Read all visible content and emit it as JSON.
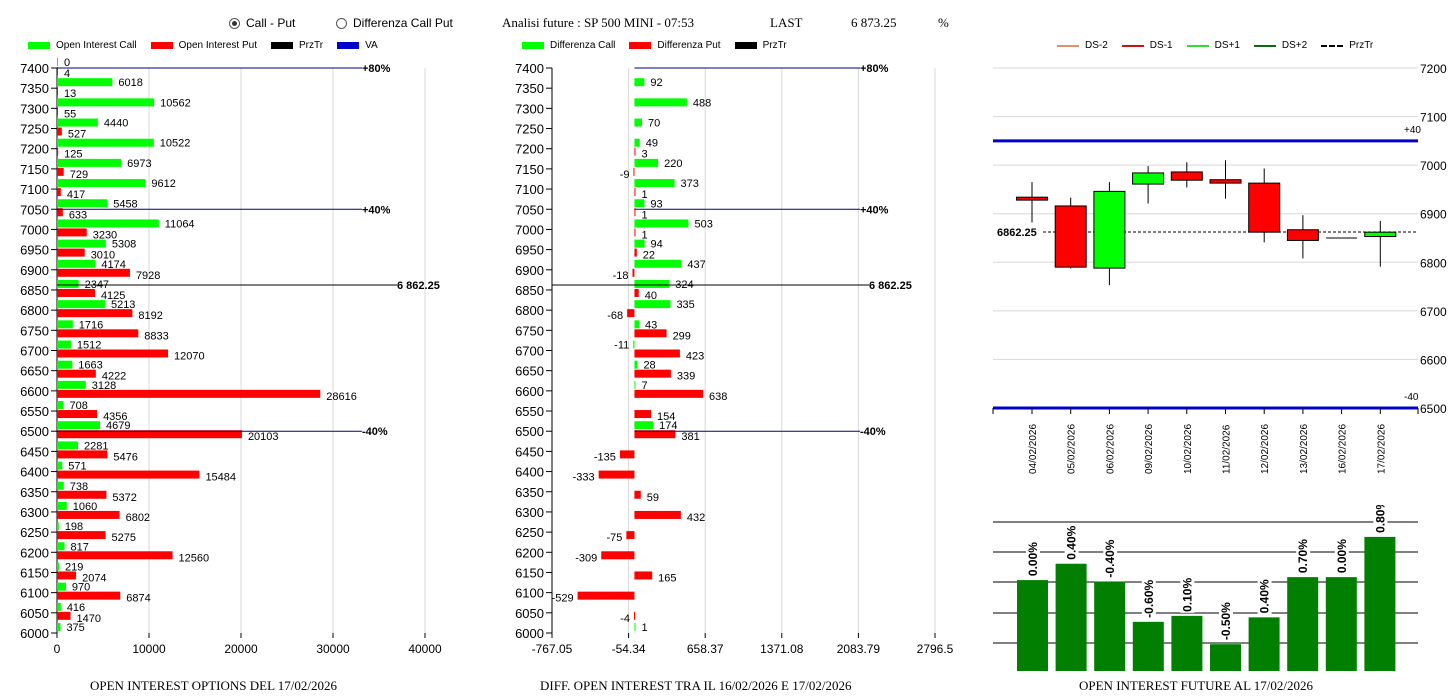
{
  "header": {
    "radio_options": [
      {
        "label": "Call - Put",
        "selected": true
      },
      {
        "label": "Differenza Call Put",
        "selected": false
      }
    ],
    "analysis_title": "Analisi future : SP 500 MINI - 07:53",
    "last_label": "LAST",
    "last_value": "6 873.25",
    "percent_label": "%"
  },
  "colors": {
    "call": "#00ff00",
    "put": "#ff0000",
    "przTr": "#000000",
    "va": "#0000cc",
    "future_bar": "#007f00"
  },
  "chart_data": [
    {
      "type": "bar",
      "orientation": "horizontal",
      "title": "OPEN INTEREST OPTIONS DEL 17/02/2026",
      "legend": [
        "Open Interest Call",
        "Open Interest Put",
        "PrzTr",
        "VA"
      ],
      "legend_placement": "top",
      "xlabel": "",
      "ylabel": "",
      "xlim": [
        0,
        40000
      ],
      "x_ticks": [
        "0",
        "10000",
        "20000",
        "30000",
        "40000"
      ],
      "grid": true,
      "categories": [
        7400,
        7350,
        7300,
        7250,
        7200,
        7150,
        7100,
        7050,
        7000,
        6950,
        6900,
        6850,
        6800,
        6750,
        6700,
        6650,
        6600,
        6550,
        6500,
        6450,
        6400,
        6350,
        6300,
        6250,
        6200,
        6150,
        6100,
        6050,
        6000
      ],
      "series": [
        {
          "name": "Open Interest Call",
          "values": [
            0,
            6018,
            10562,
            4440,
            10522,
            6973,
            9612,
            5458,
            11064,
            5308,
            4174,
            2347,
            5213,
            1716,
            1512,
            1663,
            3128,
            708,
            4679,
            2281,
            571,
            738,
            1060,
            198,
            817,
            219,
            970,
            416,
            375
          ]
        },
        {
          "name": "Open Interest Put",
          "values": [
            4,
            13,
            55,
            527,
            125,
            729,
            417,
            633,
            3230,
            3010,
            7928,
            4125,
            8192,
            8833,
            12070,
            4222,
            28616,
            4356,
            20103,
            5476,
            15484,
            5372,
            6802,
            5275,
            12560,
            2074,
            6874,
            1470,
            null
          ]
        }
      ],
      "reference_lines": [
        {
          "level": 7400,
          "label": "+80%",
          "kind": "VA"
        },
        {
          "level": 7050,
          "label": "+40%",
          "kind": "VA"
        },
        {
          "level": 6862.25,
          "label": "6 862.25",
          "kind": "PrzTr"
        },
        {
          "level": 6500,
          "label": "-40%",
          "kind": "VA"
        }
      ]
    },
    {
      "type": "bar",
      "orientation": "horizontal",
      "title": "DIFF. OPEN INTEREST TRA IL 16/02/2026 E 17/02/2026",
      "legend": [
        "Differenza Call",
        "Differenza Put",
        "PrzTr"
      ],
      "legend_placement": "top",
      "xlim": [
        -767.05,
        2796.5
      ],
      "x_ticks": [
        "-767.05",
        "-54.34",
        "658.37",
        "1371.08",
        "2083.79",
        "2796.5"
      ],
      "grid": true,
      "categories": [
        7400,
        7350,
        7300,
        7250,
        7200,
        7150,
        7100,
        7050,
        7000,
        6950,
        6900,
        6850,
        6800,
        6750,
        6700,
        6650,
        6600,
        6550,
        6500,
        6450,
        6400,
        6350,
        6300,
        6250,
        6200,
        6150,
        6100,
        6050,
        6000
      ],
      "series": [
        {
          "name": "Differenza Call",
          "values": [
            null,
            92,
            488,
            70,
            49,
            220,
            373,
            93,
            503,
            94,
            437,
            324,
            335,
            43,
            -11,
            28,
            7,
            null,
            174,
            null,
            null,
            null,
            null,
            null,
            null,
            null,
            null,
            null,
            1
          ]
        },
        {
          "name": "Differenza Put",
          "values": [
            null,
            null,
            null,
            null,
            3,
            -9,
            1,
            1,
            1,
            22,
            -18,
            40,
            -68,
            299,
            423,
            339,
            638,
            154,
            381,
            -135,
            -333,
            59,
            432,
            -75,
            -309,
            165,
            -529,
            -4,
            null
          ]
        }
      ],
      "reference_lines": [
        {
          "level": 7400,
          "label": "+80%",
          "kind": "VA"
        },
        {
          "level": 7050,
          "label": "+40%",
          "kind": "VA"
        },
        {
          "level": 6862.25,
          "label": "6 862.25",
          "kind": "PrzTr"
        },
        {
          "level": 6500,
          "label": "-40%",
          "kind": "VA"
        }
      ]
    },
    {
      "type": "candlestick",
      "title": "",
      "legend": [
        "DS-2",
        "DS-1",
        "DS+1",
        "DS+2",
        "PrzTr"
      ],
      "legend_colors": [
        "#e09070",
        "#cc1111",
        "#33dd33",
        "#116611",
        "#000000"
      ],
      "legend_placement": "top",
      "ylim": [
        6500,
        7200
      ],
      "y_ticks": [
        "7200",
        "7100",
        "7000",
        "6900",
        "6800",
        "6700",
        "6600",
        "6500"
      ],
      "grid": true,
      "x": [
        "04/02/2026",
        "05/02/2026",
        "06/02/2026",
        "09/02/2026",
        "10/02/2026",
        "11/02/2026",
        "12/02/2026",
        "13/02/2026",
        "16/02/2026",
        "17/02/2026"
      ],
      "candles": [
        {
          "open": 6934,
          "close": 6928,
          "high": 6965,
          "low": 6882,
          "color": "down"
        },
        {
          "open": 6916,
          "close": 6790,
          "high": 6933,
          "low": 6787,
          "color": "down"
        },
        {
          "open": 6788,
          "close": 6946,
          "high": 6965,
          "low": 6753,
          "color": "up"
        },
        {
          "open": 6961,
          "close": 6984,
          "high": 6998,
          "low": 6921,
          "color": "up"
        },
        {
          "open": 6986,
          "close": 6969,
          "high": 7006,
          "low": 6954,
          "color": "down"
        },
        {
          "open": 6970,
          "close": 6963,
          "high": 7010,
          "low": 6931,
          "color": "down"
        },
        {
          "open": 6963,
          "close": 6862,
          "high": 6993,
          "low": 6841,
          "color": "down"
        },
        {
          "open": 6867,
          "close": 6845,
          "high": 6897,
          "low": 6808,
          "color": "down"
        },
        {
          "open": 6850,
          "close": 6850,
          "high": 6850,
          "low": 6850,
          "color": "flat"
        },
        {
          "open": 6853,
          "close": 6862,
          "high": 6885,
          "low": 6791,
          "color": "up"
        }
      ],
      "price_line": {
        "level": 6862.25,
        "label": "6862.25"
      },
      "band_lines": [
        {
          "level": 7050,
          "label": "+40"
        },
        {
          "level": 6500,
          "label": "-40"
        }
      ]
    },
    {
      "type": "bar",
      "title": "OPEN INTEREST FUTURE AL 17/02/2026",
      "xlabel": "",
      "ylabel": "",
      "categories": [
        "04/02/2026",
        "05/02/2026",
        "06/02/2026",
        "09/02/2026",
        "10/02/2026",
        "11/02/2026",
        "12/02/2026",
        "13/02/2026",
        "16/02/2026",
        "17/02/2026"
      ],
      "values": [
        0.0,
        0.4,
        -0.4,
        -0.6,
        0.1,
        -0.5,
        0.4,
        0.7,
        0.0,
        0.8
      ],
      "data_labels": [
        "0.00%",
        "0.40%",
        "-0.40%",
        "-0.60%",
        "0.10%",
        "-0.50%",
        "0.40%",
        "0.70%",
        "0.00%",
        "0.80%"
      ],
      "relative_heights": [
        0.61,
        0.72,
        0.6,
        0.33,
        0.37,
        0.18,
        0.36,
        0.63,
        0.63,
        0.9
      ],
      "grid": true
    }
  ]
}
